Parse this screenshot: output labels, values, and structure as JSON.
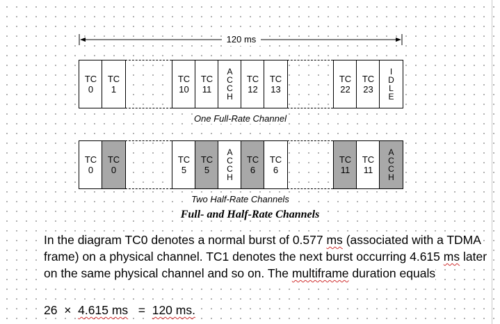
{
  "span_label": "120 ms",
  "full_rate": {
    "caption": "One Full-Rate Channel",
    "groups": [
      [
        {
          "label": [
            "TC",
            "0"
          ]
        },
        {
          "label": [
            "TC",
            "1"
          ]
        }
      ],
      [
        {
          "label": [
            "TC",
            "10"
          ]
        },
        {
          "label": [
            "TC",
            "11"
          ]
        },
        {
          "label": [
            "A",
            "C",
            "C",
            "H"
          ],
          "vertical": true
        },
        {
          "label": [
            "TC",
            "12"
          ]
        },
        {
          "label": [
            "TC",
            "13"
          ]
        }
      ],
      [
        {
          "label": [
            "TC",
            "22"
          ]
        },
        {
          "label": [
            "TC",
            "23"
          ]
        },
        {
          "label": [
            "I",
            "D",
            "L",
            "E"
          ],
          "vertical": true
        }
      ]
    ]
  },
  "half_rate": {
    "caption": "Two Half-Rate Channels",
    "groups": [
      [
        {
          "label": [
            "TC",
            "0"
          ]
        },
        {
          "label": [
            "TC",
            "0"
          ],
          "shaded": true
        }
      ],
      [
        {
          "label": [
            "TC",
            "5"
          ]
        },
        {
          "label": [
            "TC",
            "5"
          ],
          "shaded": true
        },
        {
          "label": [
            "A",
            "C",
            "C",
            "H"
          ],
          "vertical": true
        },
        {
          "label": [
            "TC",
            "6"
          ],
          "shaded": true
        },
        {
          "label": [
            "TC",
            "6"
          ]
        }
      ],
      [
        {
          "label": [
            "TC",
            "11"
          ],
          "shaded": true
        },
        {
          "label": [
            "TC",
            "11"
          ]
        },
        {
          "label": [
            "A",
            "C",
            "C",
            "H"
          ],
          "vertical": true,
          "shaded": true
        }
      ]
    ]
  },
  "colors": {
    "shaded": "#a8a8a8",
    "squiggle": "#d03030"
  },
  "figure_title": "Full- and Half-Rate Channels",
  "paragraph": "In the diagram TC0 denotes a normal burst of 0.577 ms (associated with a TDMA frame) on a physical channel. TC1 denotes the next burst occurring 4.615 ms later on the same physical channel and so on. The multiframe duration equals",
  "equation": {
    "factor": "26",
    "times": "×",
    "period": "4.615 ms",
    "equals": "=",
    "result": "120 ms."
  }
}
